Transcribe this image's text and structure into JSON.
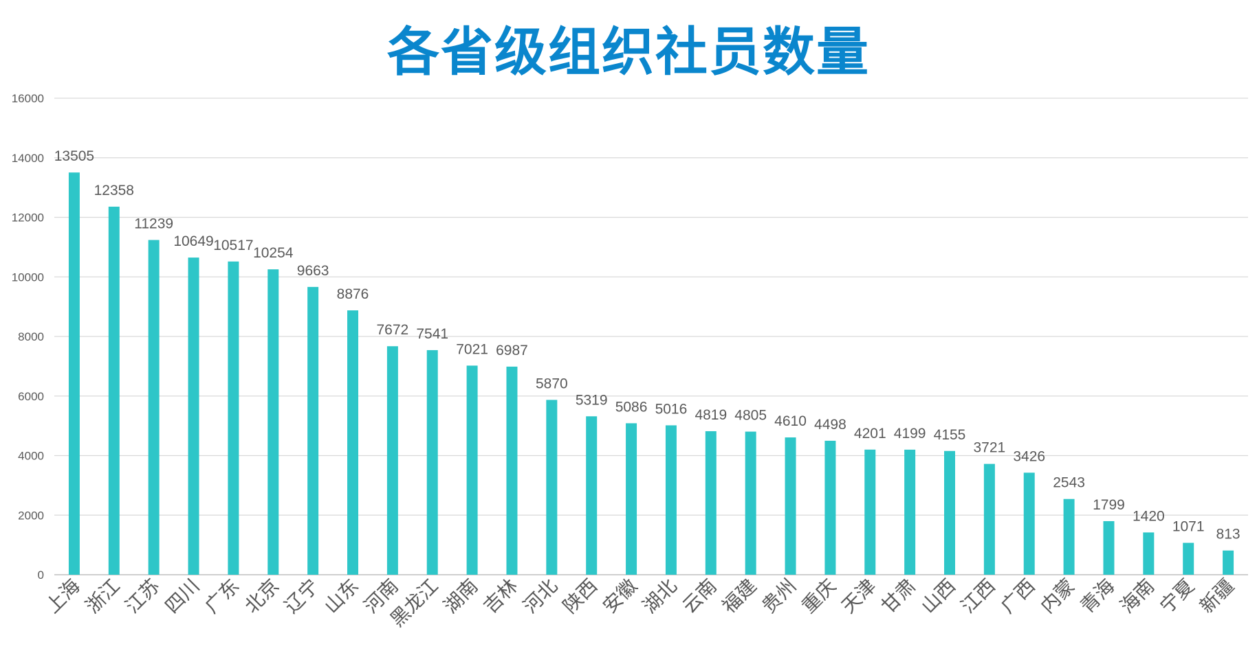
{
  "chart_data": {
    "type": "bar",
    "title": "各省级组织社员数量",
    "xlabel": "",
    "ylabel": "",
    "ylim": [
      0,
      16000
    ],
    "yticks": [
      0,
      2000,
      4000,
      6000,
      8000,
      10000,
      12000,
      14000,
      16000
    ],
    "grid": true,
    "legend": "none",
    "bar_color": "#2ec6c8",
    "title_color": "#0a86cd",
    "categories": [
      "上海",
      "浙江",
      "江苏",
      "四川",
      "广东",
      "北京",
      "辽宁",
      "山东",
      "河南",
      "黑龙江",
      "湖南",
      "吉林",
      "河北",
      "陕西",
      "安徽",
      "湖北",
      "云南",
      "福建",
      "贵州",
      "重庆",
      "天津",
      "甘肃",
      "山西",
      "江西",
      "广西",
      "内蒙",
      "青海",
      "海南",
      "宁夏",
      "新疆"
    ],
    "values": [
      13505,
      12358,
      11239,
      10649,
      10517,
      10254,
      9663,
      8876,
      7672,
      7541,
      7021,
      6987,
      5870,
      5319,
      5086,
      5016,
      4819,
      4805,
      4610,
      4498,
      4201,
      4199,
      4155,
      3721,
      3426,
      2543,
      1799,
      1420,
      1071,
      813
    ]
  }
}
